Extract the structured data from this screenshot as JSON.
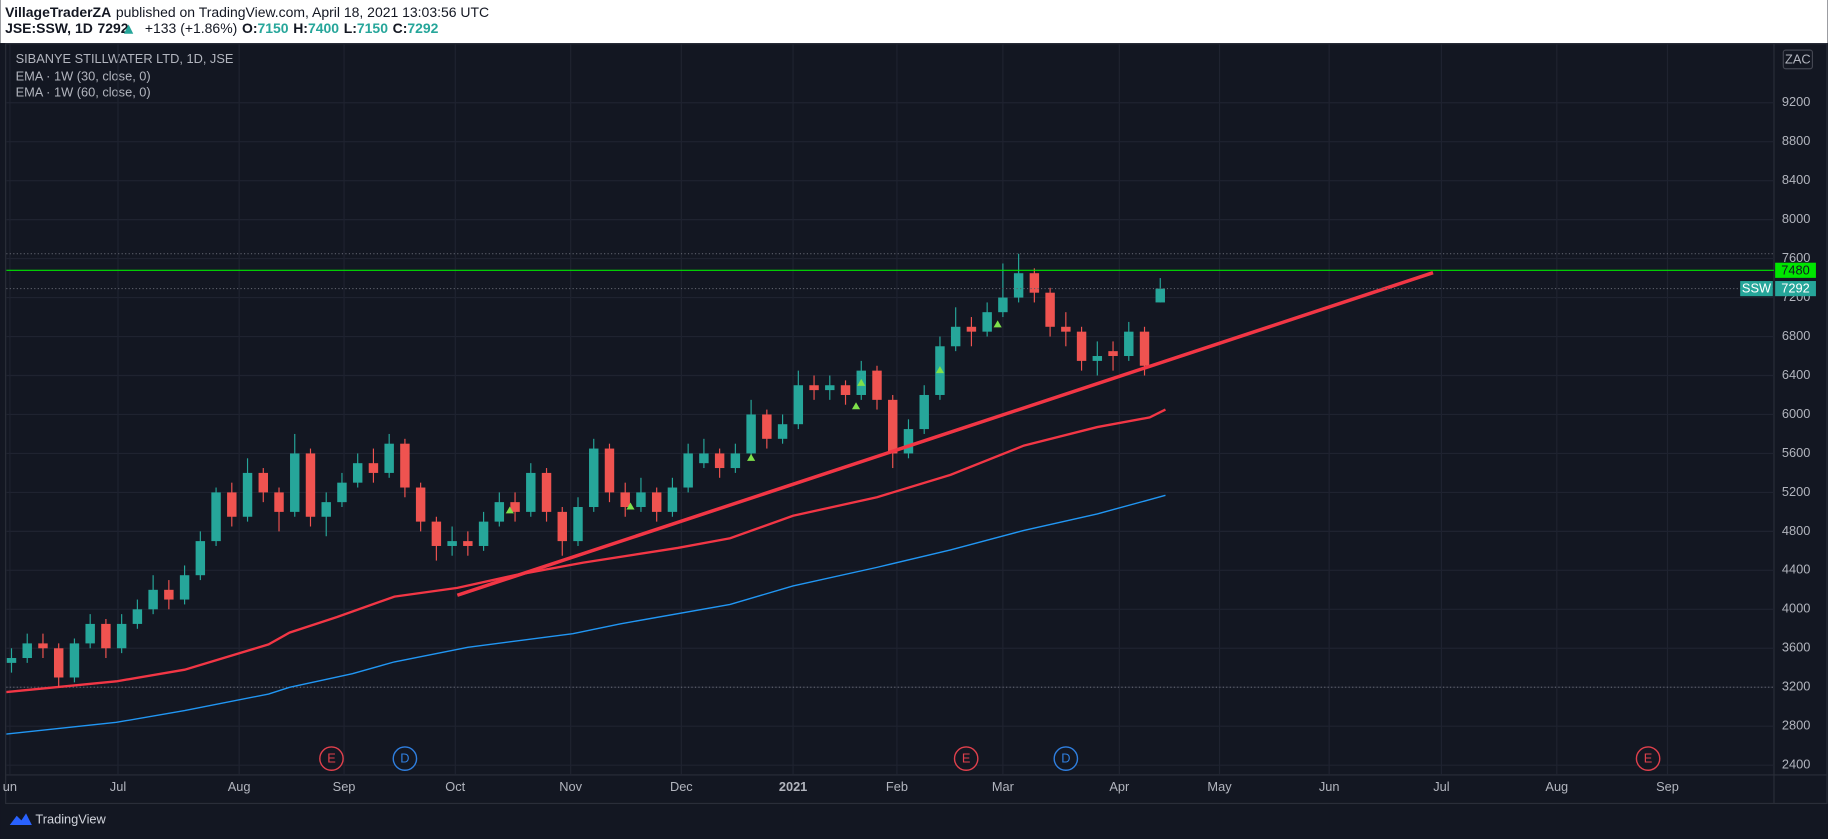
{
  "header": {
    "author": "VillageTraderZA",
    "published": "published on TradingView.com, April 18, 2021 13:03:56 UTC",
    "symbol": "JSE:SSW, 1D",
    "last": "7292",
    "change": "+133 (+1.86%)",
    "ohlc": [
      [
        "O:",
        "7150"
      ],
      [
        "H:",
        "7400"
      ],
      [
        "L:",
        "7150"
      ],
      [
        "C:",
        "7292"
      ]
    ]
  },
  "chart_data": {
    "type": "candlestick",
    "title": "SIBANYE STILLWATER LTD, 1D, JSE",
    "currency": "ZAC",
    "up_color": "#26a69a",
    "down_color": "#ef5350",
    "x": [
      1,
      4,
      7,
      10,
      13,
      16,
      19,
      22,
      25,
      28,
      31,
      34,
      37,
      40,
      43,
      46,
      49,
      52,
      55,
      58,
      61,
      64,
      67,
      70,
      73,
      76,
      79,
      82,
      85,
      88,
      91,
      94,
      97,
      100,
      103,
      106,
      109,
      112,
      115,
      118,
      121,
      124,
      127,
      130,
      133,
      136,
      139,
      142,
      145,
      148,
      151,
      154,
      157,
      160,
      163,
      166,
      169,
      172,
      175,
      178,
      181,
      184,
      187,
      190,
      193,
      196,
      199,
      202,
      205,
      208,
      211,
      214,
      217,
      220
    ],
    "open": [
      3450,
      3500,
      3650,
      3600,
      3300,
      3650,
      3850,
      3600,
      3850,
      4000,
      4200,
      4100,
      4350,
      4700,
      5200,
      4950,
      5400,
      5200,
      5000,
      5600,
      4950,
      5100,
      5300,
      5500,
      5400,
      5700,
      5250,
      4900,
      4650,
      4700,
      4650,
      4900,
      5100,
      5000,
      5400,
      5000,
      4700,
      5050,
      5650,
      5200,
      5050,
      5200,
      5000,
      5250,
      5500,
      5600,
      5450,
      5600,
      6000,
      5750,
      5900,
      6300,
      6250,
      6300,
      6200,
      6450,
      6150,
      5600,
      5850,
      6200,
      6700,
      6900,
      6850,
      7050,
      7200,
      7450,
      7250,
      6900,
      6850,
      6550,
      6650,
      6600,
      6850,
      7150
    ],
    "high": [
      3600,
      3750,
      3750,
      3650,
      3700,
      3950,
      3900,
      3950,
      4100,
      4350,
      4300,
      4450,
      4800,
      5250,
      5300,
      5550,
      5450,
      5250,
      5800,
      5650,
      5200,
      5400,
      5600,
      5650,
      5800,
      5750,
      5300,
      4950,
      4850,
      4800,
      5000,
      5200,
      5200,
      5500,
      5450,
      5050,
      5150,
      5750,
      5700,
      5300,
      5350,
      5250,
      5350,
      5700,
      5750,
      5650,
      5700,
      6150,
      6050,
      6000,
      6450,
      6400,
      6400,
      6350,
      6550,
      6500,
      6200,
      5950,
      6300,
      6800,
      7100,
      7000,
      7150,
      7550,
      7650,
      7500,
      7300,
      7050,
      6900,
      6750,
      6750,
      6950,
      6900,
      7400
    ],
    "low": [
      3350,
      3450,
      3500,
      3200,
      3250,
      3600,
      3500,
      3550,
      3800,
      3950,
      4000,
      4050,
      4300,
      4650,
      4850,
      4900,
      5100,
      4800,
      4950,
      4850,
      4750,
      5050,
      5250,
      5300,
      5350,
      5150,
      4800,
      4500,
      4550,
      4550,
      4600,
      4850,
      4900,
      4950,
      4900,
      4550,
      4650,
      5000,
      5100,
      4950,
      5000,
      4900,
      4950,
      5200,
      5450,
      5350,
      5400,
      5550,
      5650,
      5700,
      5850,
      6150,
      6150,
      6100,
      6150,
      6050,
      5450,
      5550,
      5800,
      6150,
      6650,
      6700,
      6800,
      7000,
      7150,
      7150,
      6800,
      6700,
      6450,
      6400,
      6450,
      6550,
      6400,
      7150
    ],
    "close": [
      3500,
      3650,
      3600,
      3300,
      3650,
      3850,
      3600,
      3850,
      4000,
      4200,
      4100,
      4350,
      4700,
      5200,
      4950,
      5400,
      5200,
      5000,
      5600,
      4950,
      5100,
      5300,
      5500,
      5400,
      5700,
      5250,
      4900,
      4650,
      4700,
      4650,
      4900,
      5100,
      5000,
      5400,
      5000,
      4700,
      5050,
      5650,
      5200,
      5050,
      5200,
      5000,
      5250,
      5600,
      5600,
      5450,
      5600,
      6000,
      5750,
      5900,
      6300,
      6250,
      6300,
      6200,
      6450,
      6150,
      5600,
      5850,
      6200,
      6700,
      6900,
      6850,
      7050,
      7200,
      7450,
      7250,
      6900,
      6850,
      6550,
      6600,
      6600,
      6850,
      6500,
      7292
    ],
    "series": [
      {
        "name": "EMA · 1W (30, close, 0)",
        "color": "#f23645",
        "x": [
          0,
          21,
          34,
          50,
          54,
          63,
          74,
          86,
          97,
          110,
          128,
          138,
          150,
          166,
          180,
          194,
          208,
          218,
          221
        ],
        "values": [
          3150,
          3260,
          3380,
          3640,
          3760,
          3920,
          4130,
          4220,
          4350,
          4480,
          4630,
          4730,
          4960,
          5150,
          5380,
          5680,
          5870,
          5970,
          6050
        ]
      },
      {
        "name": "EMA · 1W (60, close, 0)",
        "color": "#2196f3",
        "x": [
          0,
          21,
          34,
          50,
          54,
          66,
          74,
          88,
          108,
          117,
          138,
          150,
          166,
          180,
          194,
          208,
          221
        ],
        "values": [
          2720,
          2840,
          2960,
          3130,
          3200,
          3340,
          3460,
          3610,
          3750,
          3850,
          4050,
          4240,
          4430,
          4610,
          4810,
          4980,
          5170
        ]
      }
    ],
    "trendline": {
      "color": "#f23645",
      "x": [
        86,
        272
      ],
      "values": [
        4145,
        7455
      ]
    },
    "level": {
      "value": 7480,
      "color": "#00e600"
    },
    "last_price": {
      "name": "SSW",
      "value": 7292
    },
    "signals": {
      "color": "#7ee04a",
      "x": [
        96,
        119,
        142,
        162,
        163,
        178,
        189
      ],
      "values": [
        5020,
        5060,
        5560,
        6090,
        6330,
        6460,
        6930
      ]
    },
    "events": [
      {
        "label": "E",
        "x": 62,
        "color": "#e0404c"
      },
      {
        "label": "D",
        "x": 76,
        "color": "#2f7fe0"
      },
      {
        "label": "E",
        "x": 183,
        "color": "#e0404c"
      },
      {
        "label": "D",
        "x": 202,
        "color": "#2f7fe0"
      },
      {
        "label": "E",
        "x": 313,
        "color": "#e0404c"
      }
    ],
    "xlim": [
      0,
      337
    ],
    "xticks": [
      {
        "value": 0.7,
        "label": "un"
      },
      {
        "value": 21.3,
        "label": "Jul"
      },
      {
        "value": 44.4,
        "label": "Aug"
      },
      {
        "value": 64.4,
        "label": "Sep"
      },
      {
        "value": 85.6,
        "label": "Oct"
      },
      {
        "value": 107.6,
        "label": "Nov"
      },
      {
        "value": 128.7,
        "label": "Dec"
      },
      {
        "value": 150,
        "label": "2021"
      },
      {
        "value": 169.8,
        "label": "Feb"
      },
      {
        "value": 190,
        "label": "Mar"
      },
      {
        "value": 212.2,
        "label": "Apr"
      },
      {
        "value": 231.3,
        "label": "May"
      },
      {
        "value": 252.2,
        "label": "Jun"
      },
      {
        "value": 273.6,
        "label": "Jul"
      },
      {
        "value": 295.6,
        "label": "Aug"
      },
      {
        "value": 316.7,
        "label": "Sep"
      }
    ],
    "ylim": [
      2300,
      9800
    ],
    "yticks": [
      2400,
      2800,
      3200,
      3600,
      4000,
      4400,
      4800,
      5200,
      5600,
      6000,
      6400,
      6800,
      7200,
      7600,
      8000,
      8400,
      8800,
      9200
    ],
    "grid": true
  },
  "footer": {
    "brand": "TradingView"
  }
}
